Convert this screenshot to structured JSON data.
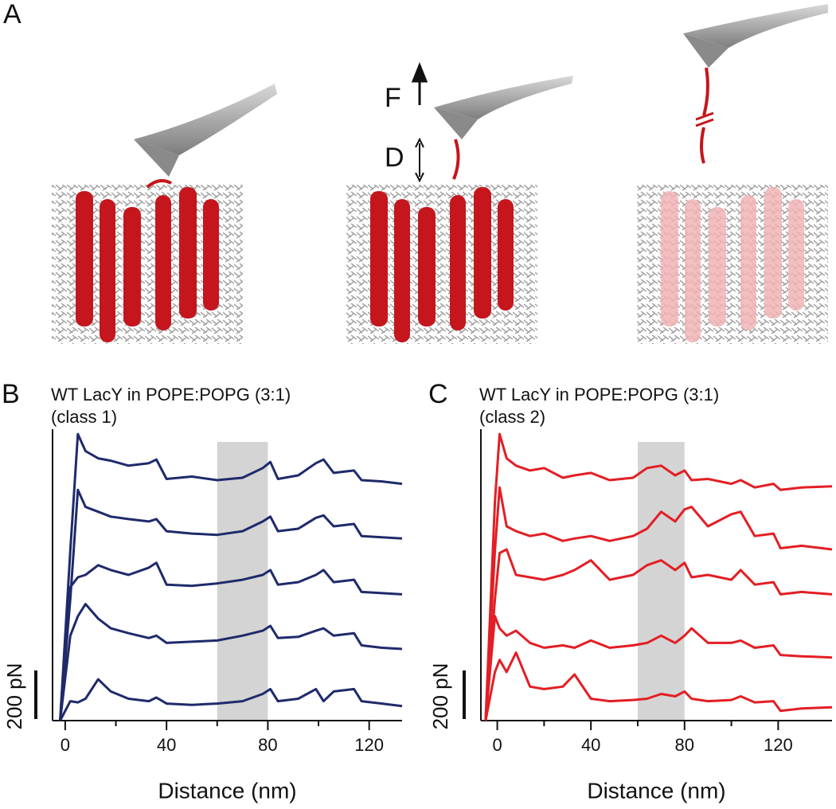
{
  "panel_a": {
    "label": "A",
    "force_label": "F",
    "distance_label": "D"
  },
  "chart_data": [
    {
      "type": "line",
      "panel_label": "B",
      "title": "WT LacY in POPE:POPG (3:1)",
      "subtitle": "(class 1)",
      "xlabel": "Distance (nm)",
      "xlim": [
        -5,
        133
      ],
      "xticks": [
        0,
        40,
        80,
        120
      ],
      "xminorticks": [
        20,
        60,
        100
      ],
      "ylim": [
        0,
        1200
      ],
      "highlight": [
        60,
        80
      ],
      "scale_bar": {
        "value": 200,
        "label": "200 pN"
      },
      "x": [
        -2,
        2,
        5,
        8,
        13,
        18,
        25,
        33,
        36,
        40,
        50,
        60,
        70,
        78,
        81,
        84,
        92,
        99,
        102,
        106,
        114,
        117,
        125,
        133
      ],
      "series": [
        {
          "color": "#1f2a6b",
          "values": [
            0,
            700,
            1180,
            1110,
            1080,
            1070,
            1050,
            1060,
            1075,
            995,
            1005,
            990,
            1000,
            1040,
            1065,
            995,
            1010,
            1060,
            1075,
            1020,
            1030,
            990,
            985,
            975
          ]
        },
        {
          "color": "#1f2a6b",
          "values": [
            0,
            500,
            950,
            880,
            860,
            840,
            830,
            820,
            830,
            780,
            770,
            765,
            780,
            820,
            840,
            780,
            790,
            835,
            845,
            800,
            810,
            760,
            755,
            750
          ]
        },
        {
          "color": "#1f2a6b",
          "values": [
            0,
            550,
            590,
            600,
            640,
            620,
            600,
            630,
            650,
            560,
            555,
            565,
            580,
            600,
            620,
            560,
            570,
            600,
            620,
            570,
            580,
            530,
            525,
            520
          ]
        },
        {
          "color": "#1f2a6b",
          "values": [
            0,
            350,
            430,
            480,
            420,
            380,
            360,
            340,
            350,
            320,
            325,
            330,
            350,
            370,
            390,
            340,
            345,
            370,
            380,
            350,
            360,
            310,
            300,
            295
          ]
        },
        {
          "color": "#1f2a6b",
          "values": [
            0,
            80,
            75,
            90,
            170,
            120,
            90,
            80,
            95,
            70,
            65,
            70,
            80,
            110,
            130,
            80,
            90,
            130,
            80,
            120,
            130,
            80,
            70,
            60
          ]
        }
      ]
    },
    {
      "type": "line",
      "panel_label": "C",
      "title": "WT LacY in POPE:POPG (3:1)",
      "subtitle": "(class 2)",
      "xlabel": "Distance (nm)",
      "xlim": [
        -7,
        143
      ],
      "xticks": [
        0,
        40,
        80,
        120
      ],
      "xminorticks": [
        20,
        60,
        100
      ],
      "ylim": [
        0,
        1200
      ],
      "highlight": [
        60,
        80
      ],
      "scale_bar": {
        "value": 200,
        "label": "200 pN"
      },
      "x": [
        -5,
        -1,
        1,
        4,
        8,
        14,
        20,
        28,
        33,
        40,
        48,
        58,
        64,
        70,
        76,
        80,
        83,
        90,
        100,
        104,
        110,
        118,
        121,
        130,
        143
      ],
      "series": [
        {
          "color": "#e31e24",
          "values": [
            0,
            900,
            1180,
            1080,
            1050,
            1030,
            1040,
            1000,
            1010,
            1020,
            990,
            1000,
            1040,
            1050,
            1010,
            1030,
            990,
            995,
            975,
            990,
            960,
            975,
            950,
            960,
            965
          ]
        },
        {
          "color": "#e31e24",
          "values": [
            0,
            700,
            960,
            800,
            780,
            760,
            770,
            740,
            750,
            760,
            740,
            760,
            790,
            860,
            820,
            870,
            880,
            800,
            850,
            860,
            760,
            770,
            710,
            720,
            705
          ]
        },
        {
          "color": "#e31e24",
          "values": [
            0,
            500,
            690,
            705,
            600,
            590,
            580,
            600,
            620,
            660,
            580,
            600,
            640,
            660,
            620,
            650,
            590,
            600,
            580,
            620,
            560,
            570,
            520,
            530,
            520
          ]
        },
        {
          "color": "#e31e24",
          "values": [
            0,
            430,
            380,
            350,
            370,
            320,
            300,
            310,
            300,
            330,
            300,
            310,
            320,
            350,
            320,
            350,
            380,
            320,
            320,
            330,
            300,
            310,
            270,
            265,
            260
          ]
        },
        {
          "color": "#e31e24",
          "values": [
            0,
            200,
            250,
            200,
            280,
            140,
            130,
            140,
            190,
            90,
            80,
            85,
            90,
            110,
            100,
            120,
            90,
            80,
            85,
            100,
            75,
            80,
            40,
            50,
            55
          ]
        }
      ]
    }
  ]
}
